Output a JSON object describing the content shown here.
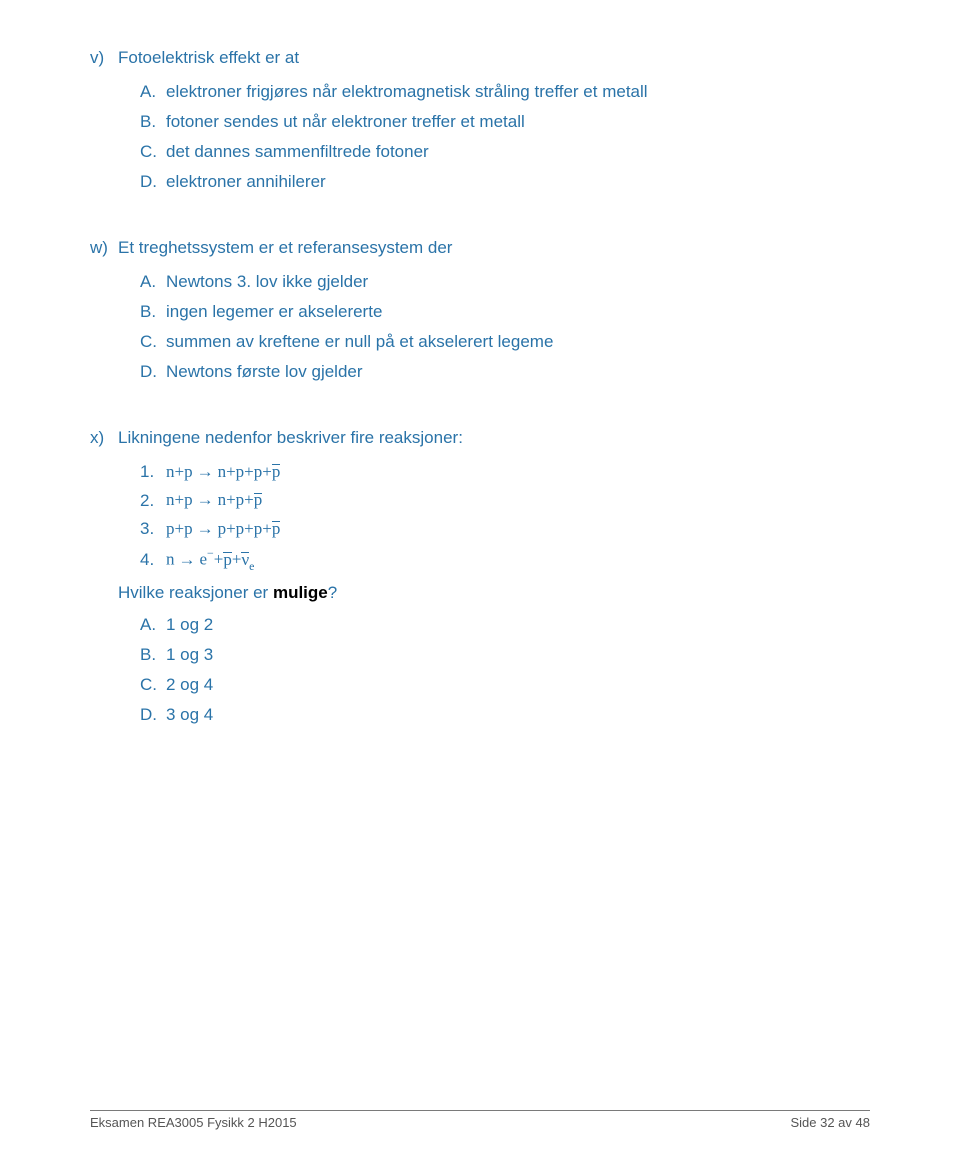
{
  "colors": {
    "accent": "#2a73a8",
    "body_text": "#2a2a2a",
    "footer_text": "#555555",
    "footer_rule": "#7a7a7a",
    "background": "#ffffff"
  },
  "typography": {
    "body_font": "Arial",
    "body_size_pt": 12,
    "equation_font": "Times New Roman",
    "footer_size_pt": 9
  },
  "questions": [
    {
      "marker": "v)",
      "stem": "Fotoelektrisk effekt er at",
      "options": [
        {
          "marker": "A.",
          "text": "elektroner frigjøres når elektromagnetisk stråling treffer et metall"
        },
        {
          "marker": "B.",
          "text": "fotoner sendes ut når elektroner treffer et metall"
        },
        {
          "marker": "C.",
          "text": "det dannes sammenfiltrede fotoner"
        },
        {
          "marker": "D.",
          "text": "elektroner annihilerer"
        }
      ]
    },
    {
      "marker": "w)",
      "stem": "Et treghetssystem er et referansesystem der",
      "options": [
        {
          "marker": "A.",
          "text": "Newtons 3. lov ikke gjelder"
        },
        {
          "marker": "B.",
          "text": "ingen legemer er akselererte"
        },
        {
          "marker": "C.",
          "text": "summen av kreftene er null på et akselerert legeme"
        },
        {
          "marker": "D.",
          "text": "Newtons første lov gjelder"
        }
      ]
    }
  ],
  "question_x": {
    "marker": "x)",
    "stem": "Likningene nedenfor beskriver fire reaksjoner:",
    "equations": [
      {
        "num": "1.",
        "lhs": "n+p",
        "rhs_plain": "n+p+p+",
        "rhs_bar": "p"
      },
      {
        "num": "2.",
        "lhs": "n+p",
        "rhs_plain": "n+p+",
        "rhs_bar": "p"
      },
      {
        "num": "3.",
        "lhs": "p+p",
        "rhs_plain": "p+p+p+",
        "rhs_bar": "p"
      },
      {
        "num": "4.",
        "lhs": "n",
        "rhs_e": "e",
        "rhs_e_sup": "−",
        "rhs_plus1": "+",
        "rhs_pbar": "p",
        "rhs_plus2": "+",
        "rhs_nu": "ν",
        "rhs_nu_sub": "e",
        "rhs_nu_bar": true
      }
    ],
    "sub_prompt_pre": "Hvilke reaksjoner er ",
    "sub_prompt_bold": "mulige",
    "sub_prompt_post": "?",
    "options": [
      {
        "marker": "A.",
        "text": "1 og 2"
      },
      {
        "marker": "B.",
        "text": "1 og 3"
      },
      {
        "marker": "C.",
        "text": "2 og 4"
      },
      {
        "marker": "D.",
        "text": "3 og 4"
      }
    ]
  },
  "footer": {
    "left": "Eksamen REA3005 Fysikk 2 H2015",
    "right": "Side 32 av 48"
  }
}
